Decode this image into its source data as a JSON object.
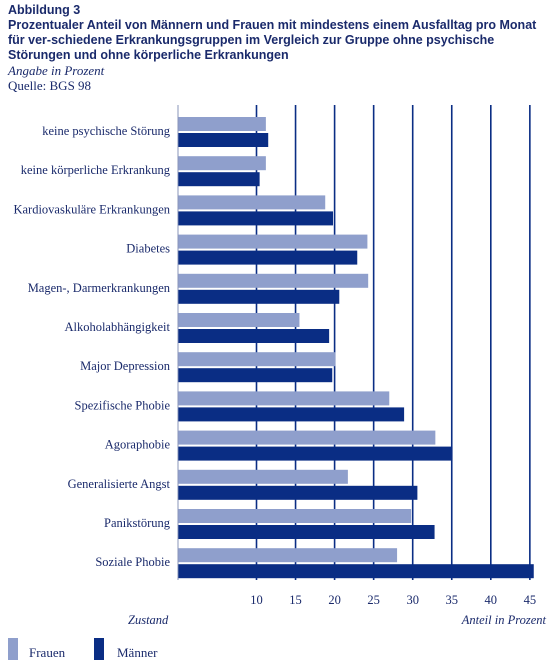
{
  "figure": {
    "number": "Abbildung 3",
    "title": "Prozentualer Anteil von Männern und Frauen mit mindestens einem Ausfalltag pro Monat für ver-schiedene Erkrankungsgruppen im Vergleich zur Gruppe ohne psychische Störungen und ohne körperliche Erkrankungen",
    "unit": "Angabe in Prozent",
    "source": "Quelle: BGS 98"
  },
  "chart_data": {
    "type": "bar",
    "orientation": "horizontal",
    "categories": [
      "keine psychische Störung",
      "keine körperliche Erkrankung",
      "Kardiovaskuläre Erkrankungen",
      "Diabetes",
      "Magen-, Darmerkrankungen",
      "Alkoholabhängigkeit",
      "Major Depression",
      "Spezifische Phobie",
      "Agoraphobie",
      "Generalisierte Angst",
      "Panikstörung",
      "Soziale Phobie"
    ],
    "series": [
      {
        "name": "Frauen",
        "color": "#8f9fcc",
        "values": [
          11.2,
          11.2,
          18.8,
          24.2,
          24.3,
          15.5,
          20.1,
          27.0,
          32.9,
          21.7,
          29.8,
          28.0
        ]
      },
      {
        "name": "Männer",
        "color": "#0a2d84",
        "values": [
          11.5,
          10.4,
          19.8,
          22.9,
          20.6,
          19.3,
          19.7,
          28.9,
          35.1,
          30.6,
          32.8,
          45.5
        ]
      }
    ],
    "xlim": [
      0,
      45
    ],
    "xticks": [
      10,
      15,
      20,
      25,
      30,
      35,
      40,
      45
    ],
    "xlabel": "Anteil in Prozent",
    "ylabel": "Zustand",
    "grid": true,
    "legend": "bottom-left"
  }
}
